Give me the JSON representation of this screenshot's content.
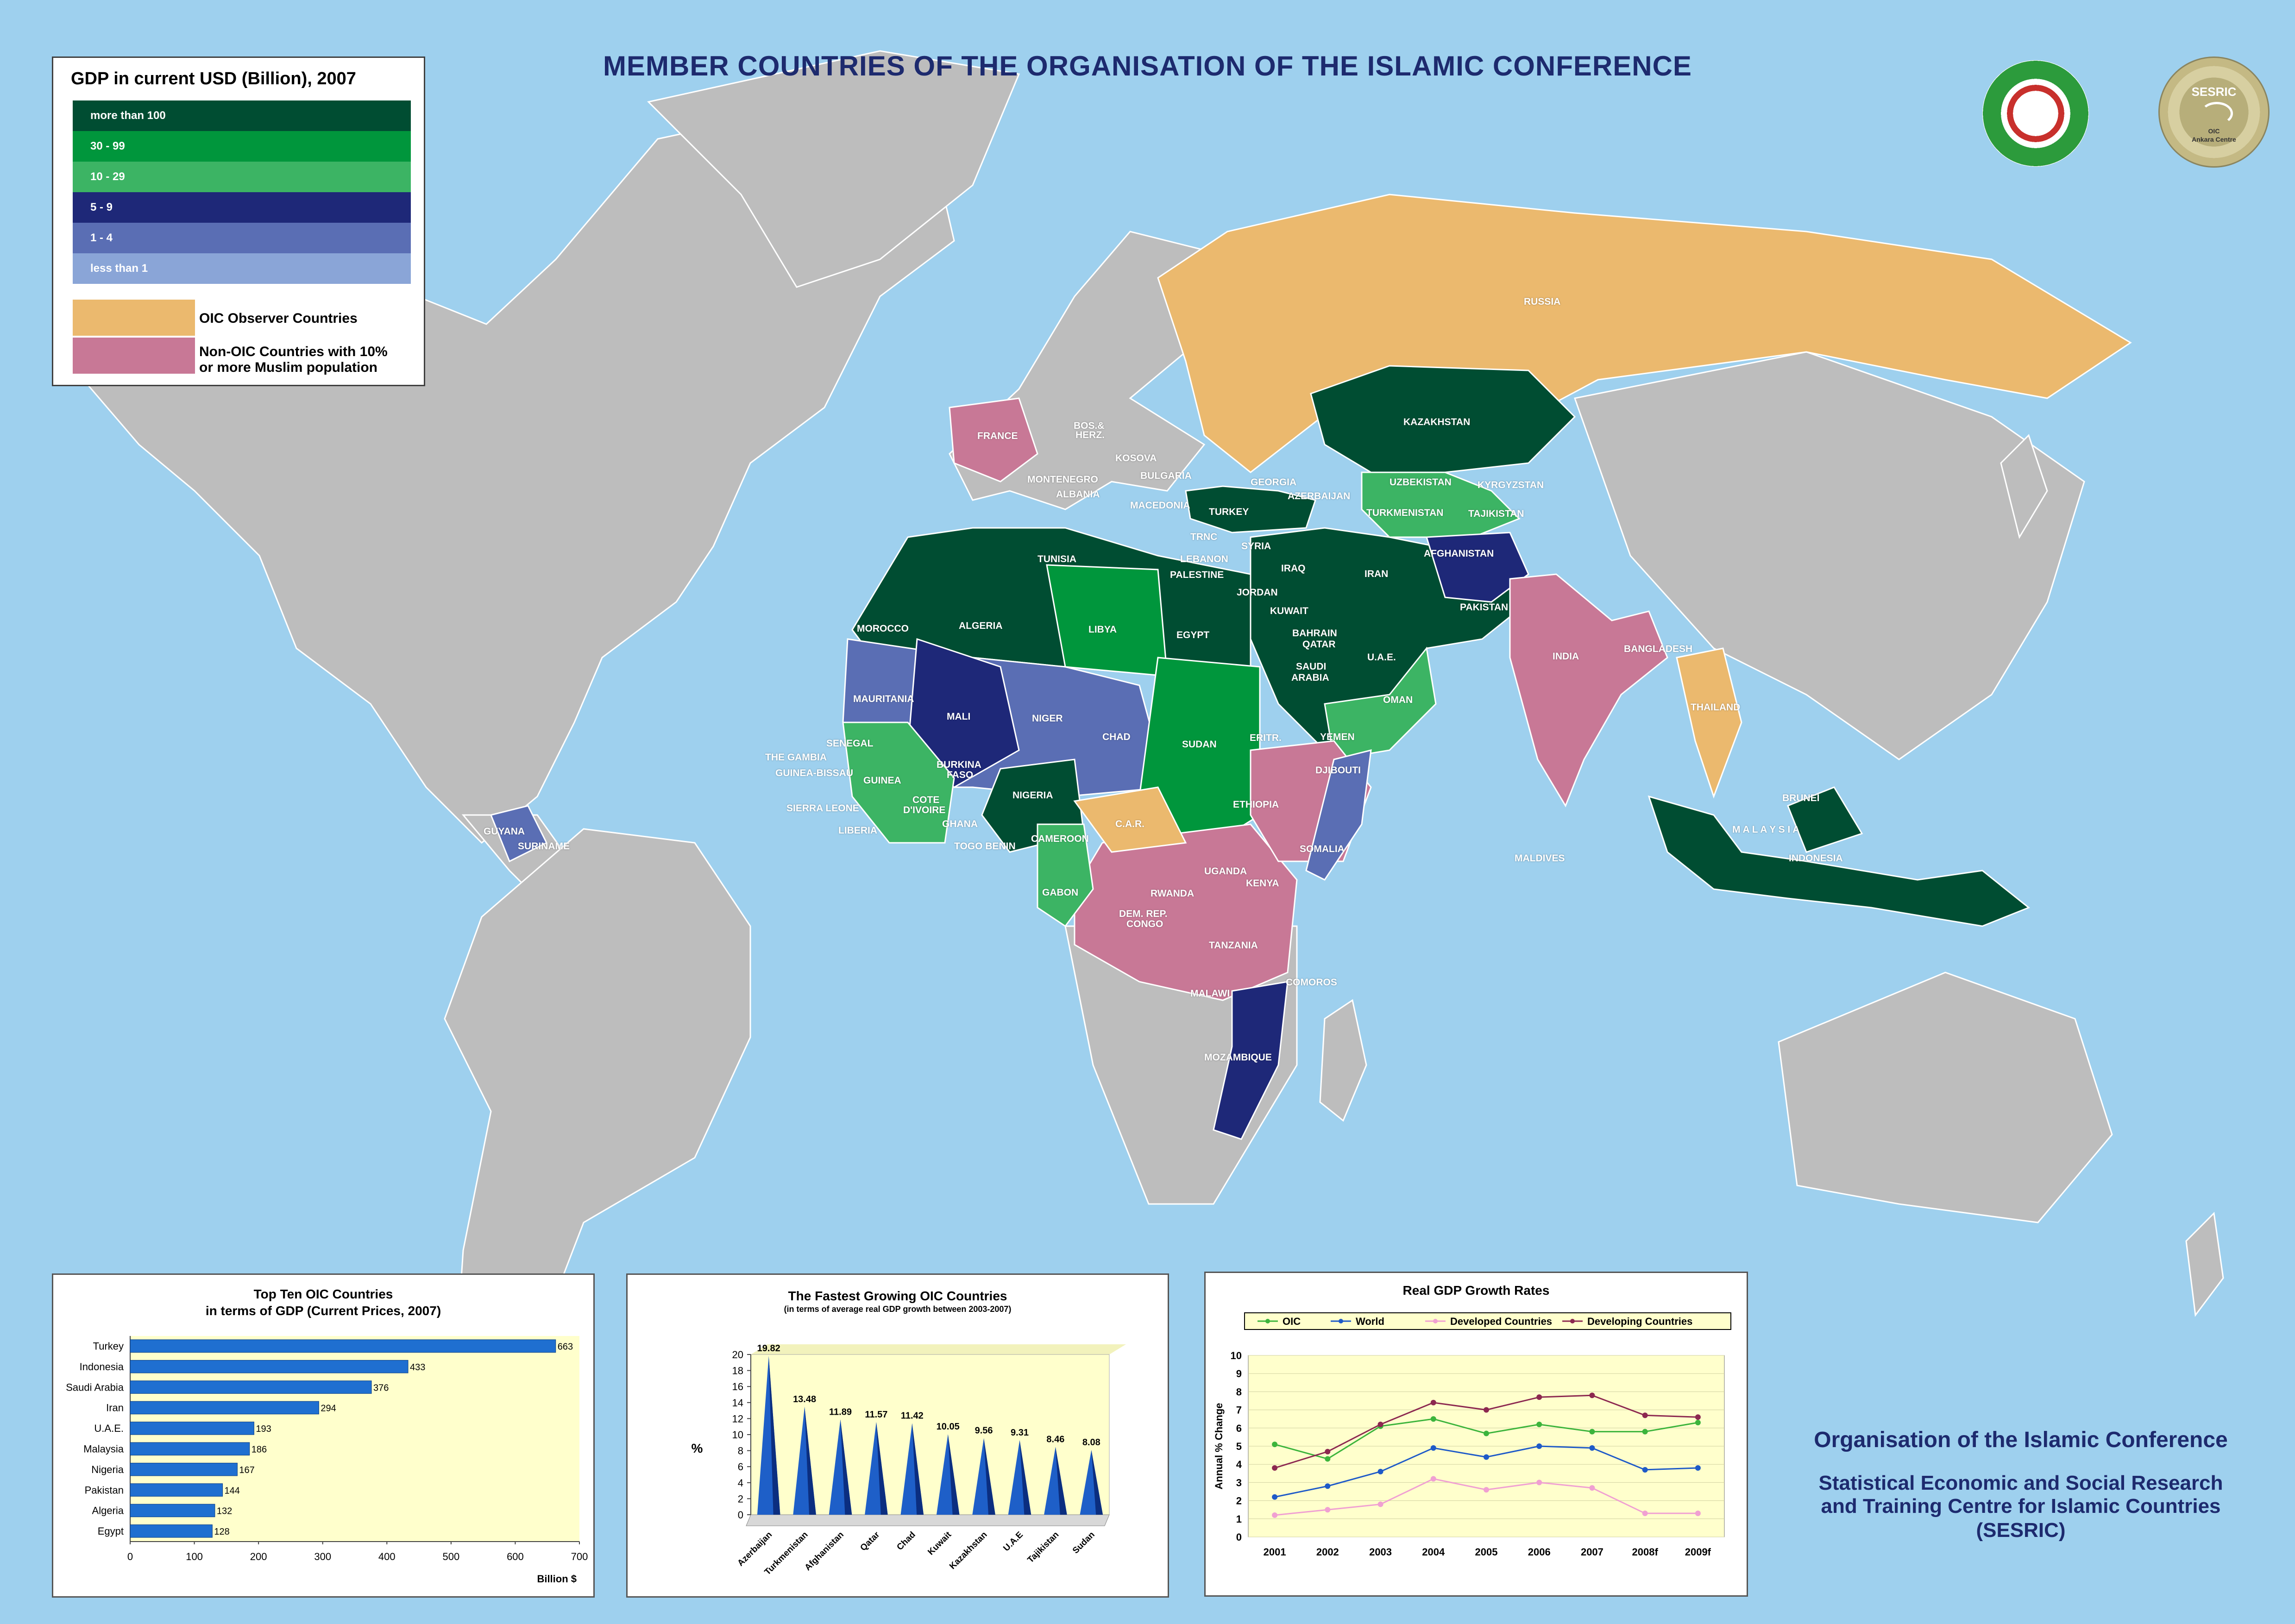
{
  "map": {
    "title": "MEMBER COUNTRIES OF THE ORGANISATION OF THE ISLAMIC CONFERENCE",
    "colors": {
      "ocean": "#9ed0ee",
      "land": "#bdbdbd",
      "gdp_gt100": "#004d32",
      "gdp_30_99": "#00963c",
      "gdp_10_29": "#3cb464",
      "gdp_5_9": "#1e2878",
      "gdp_1_4": "#5a6eb4",
      "gdp_lt1": "#8aa5d7",
      "observer": "#ebb96e",
      "non_oic": "#c87896"
    },
    "country_labels": [
      {
        "id": "russia",
        "text": "RUSSIA"
      },
      {
        "id": "kazakhstan",
        "text": "KAZAKHSTAN"
      },
      {
        "id": "uzbekistan",
        "text": "UZBEKISTAN"
      },
      {
        "id": "kyrgyzstan",
        "text": "KYRGYZSTAN"
      },
      {
        "id": "tajikistan",
        "text": "TAJIKISTAN"
      },
      {
        "id": "turkmenistan",
        "text": "TURKMENISTAN"
      },
      {
        "id": "georgia",
        "text": "GEORGIA"
      },
      {
        "id": "azerbaijan",
        "text": "AZERBAIJAN"
      },
      {
        "id": "turkey",
        "text": "TURKEY"
      },
      {
        "id": "france",
        "text": "FRANCE"
      },
      {
        "id": "bosherz",
        "text": "BOS.&"
      },
      {
        "id": "bosherz2",
        "text": "HERZ."
      },
      {
        "id": "kosova",
        "text": "KOSOVA"
      },
      {
        "id": "bulgaria",
        "text": "BULGARIA"
      },
      {
        "id": "montenegro",
        "text": "MONTENEGRO"
      },
      {
        "id": "albania",
        "text": "ALBANIA"
      },
      {
        "id": "macedonia",
        "text": "MACEDONIA"
      },
      {
        "id": "trnc",
        "text": "TRNC"
      },
      {
        "id": "syria",
        "text": "SYRIA"
      },
      {
        "id": "lebanon",
        "text": "LEBANON"
      },
      {
        "id": "palestine",
        "text": "PALESTINE"
      },
      {
        "id": "iraq",
        "text": "IRAQ"
      },
      {
        "id": "jordan",
        "text": "JORDAN"
      },
      {
        "id": "iran",
        "text": "IRAN"
      },
      {
        "id": "afghanistan",
        "text": "AFGHANISTAN"
      },
      {
        "id": "pakistan",
        "text": "PAKISTAN"
      },
      {
        "id": "kuwait",
        "text": "KUWAIT"
      },
      {
        "id": "bahrain",
        "text": "BAHRAIN"
      },
      {
        "id": "qatar",
        "text": "QATAR"
      },
      {
        "id": "saudi",
        "text": "SAUDI"
      },
      {
        "id": "arabia",
        "text": "ARABIA"
      },
      {
        "id": "uae",
        "text": "U.A.E."
      },
      {
        "id": "oman",
        "text": "OMAN"
      },
      {
        "id": "yemen",
        "text": "YEMEN"
      },
      {
        "id": "india",
        "text": "INDIA"
      },
      {
        "id": "bangladesh",
        "text": "BANGLADESH"
      },
      {
        "id": "thailand",
        "text": "THAILAND"
      },
      {
        "id": "brunei",
        "text": "BRUNEI"
      },
      {
        "id": "malaysia",
        "text": "M A L A Y S I A"
      },
      {
        "id": "indonesia",
        "text": "INDONESIA"
      },
      {
        "id": "maldives",
        "text": "MALDIVES"
      },
      {
        "id": "tunisia",
        "text": "TUNISIA"
      },
      {
        "id": "morocco",
        "text": "MOROCCO"
      },
      {
        "id": "algeria",
        "text": "ALGERIA"
      },
      {
        "id": "libya",
        "text": "LIBYA"
      },
      {
        "id": "egypt",
        "text": "EGYPT"
      },
      {
        "id": "mauritania",
        "text": "MAURITANIA"
      },
      {
        "id": "mali",
        "text": "MALI"
      },
      {
        "id": "niger",
        "text": "NIGER"
      },
      {
        "id": "chad",
        "text": "CHAD"
      },
      {
        "id": "sudan",
        "text": "SUDAN"
      },
      {
        "id": "eritrea",
        "text": "ERITR."
      },
      {
        "id": "djibouti",
        "text": "DJIBOUTI"
      },
      {
        "id": "ethiopia",
        "text": "ETHIOPIA"
      },
      {
        "id": "somalia",
        "text": "SOMALIA"
      },
      {
        "id": "senegal",
        "text": "SENEGAL"
      },
      {
        "id": "gambia",
        "text": "THE GAMBIA"
      },
      {
        "id": "guineabissau",
        "text": "GUINEA-BISSAU"
      },
      {
        "id": "guinea",
        "text": "GUINEA"
      },
      {
        "id": "sierraleone",
        "text": "SIERRA LEONE"
      },
      {
        "id": "liberia",
        "text": "LIBERIA"
      },
      {
        "id": "burkina",
        "text": "BURKINA"
      },
      {
        "id": "faso",
        "text": "FASO"
      },
      {
        "id": "cote",
        "text": "COTE"
      },
      {
        "id": "divoire",
        "text": "D'IVOIRE"
      },
      {
        "id": "ghana",
        "text": "GHANA"
      },
      {
        "id": "togobenin",
        "text": "TOGO BENIN"
      },
      {
        "id": "nigeria",
        "text": "NIGERIA"
      },
      {
        "id": "cameroon",
        "text": "CAMEROON"
      },
      {
        "id": "car",
        "text": "C.A.R."
      },
      {
        "id": "gabon",
        "text": "GABON"
      },
      {
        "id": "uganda",
        "text": "UGANDA"
      },
      {
        "id": "kenya",
        "text": "KENYA"
      },
      {
        "id": "rwanda",
        "text": "RWANDA"
      },
      {
        "id": "drc1",
        "text": "DEM. REP."
      },
      {
        "id": "drc2",
        "text": "CONGO"
      },
      {
        "id": "tanzania",
        "text": "TANZANIA"
      },
      {
        "id": "comoros",
        "text": "COMOROS"
      },
      {
        "id": "malawi",
        "text": "MALAWI"
      },
      {
        "id": "mozambique",
        "text": "MOZAMBIQUE"
      },
      {
        "id": "guyana",
        "text": "GUYANA"
      },
      {
        "id": "suriname",
        "text": "SURINAME"
      }
    ]
  },
  "legend": {
    "title": "GDP in current USD (Billion), 2007",
    "rows": [
      "more than 100",
      "30 - 99",
      "10 - 29",
      "5 - 9",
      "1 - 4",
      "less than 1"
    ],
    "observer_label": "OIC Observer Countries",
    "non_oic_label_1": "Non-OIC Countries with 10%",
    "non_oic_label_2": "or more Muslim population"
  },
  "footer": {
    "line1": "Organisation of the Islamic Conference",
    "line2": "Statistical Economic and Social Research",
    "line3": "and Training Centre for Islamic Countries",
    "line4": "(SESRIC)"
  },
  "emblems": {
    "sesric_text": "SESRIC",
    "sesric_sub": "OIC",
    "sesric_sub2": "Ankara Centre"
  },
  "chart_data": [
    {
      "type": "bar",
      "orientation": "horizontal",
      "title": "Top Ten OIC Countries",
      "subtitle": "in terms of GDP (Current Prices, 2007)",
      "categories": [
        "Turkey",
        "Indonesia",
        "Saudi Arabia",
        "Iran",
        "U.A.E.",
        "Malaysia",
        "Nigeria",
        "Pakistan",
        "Algeria",
        "Egypt"
      ],
      "values": [
        663,
        433,
        376,
        294,
        193,
        186,
        167,
        144,
        132,
        128
      ],
      "xlim": [
        0,
        700
      ],
      "xticks": [
        0,
        100,
        200,
        300,
        400,
        500,
        600,
        700
      ],
      "xlabel": "Billion $",
      "color": "#1f6fd0"
    },
    {
      "type": "bar",
      "style": "3d-cone",
      "title": "The Fastest Growing OIC Countries",
      "subtitle": "(in terms of average real GDP growth between 2003-2007)",
      "categories": [
        "Azerbaijan",
        "Turkmenistan",
        "Afghanistan",
        "Qatar",
        "Chad",
        "Kuwait",
        "Kazakhstan",
        "U.A.E",
        "Tajikistan",
        "Sudan"
      ],
      "values": [
        19.82,
        13.48,
        11.89,
        11.57,
        11.42,
        10.05,
        9.56,
        9.31,
        8.46,
        8.08
      ],
      "value_labels": [
        "19.82",
        "13.48",
        "11.89",
        "11.57",
        "11.42",
        "10.05",
        "9.56",
        "9.31",
        "8.46",
        "8.08"
      ],
      "ylim": [
        0,
        20
      ],
      "yticks": [
        0,
        2,
        4,
        6,
        8,
        10,
        12,
        14,
        16,
        18,
        20
      ],
      "ylabel": "%",
      "color": "#1e5fc8"
    },
    {
      "type": "line",
      "title": "Real GDP Growth Rates",
      "x": [
        "2001",
        "2002",
        "2003",
        "2004",
        "2005",
        "2006",
        "2007",
        "2008f",
        "2009f"
      ],
      "ylim": [
        0,
        10
      ],
      "yticks": [
        0,
        1,
        2,
        3,
        4,
        5,
        6,
        7,
        8,
        9,
        10
      ],
      "ylabel": "Annual % Change",
      "series": [
        {
          "name": "OIC",
          "color": "#3cb43c",
          "values": [
            5.1,
            4.3,
            6.1,
            6.5,
            5.7,
            6.2,
            5.8,
            5.8,
            6.3
          ]
        },
        {
          "name": "World",
          "color": "#1e5ac8",
          "values": [
            2.2,
            2.8,
            3.6,
            4.9,
            4.4,
            5.0,
            4.9,
            3.7,
            3.8
          ]
        },
        {
          "name": "Developed Countries",
          "color": "#f0a0d2",
          "values": [
            1.2,
            1.5,
            1.8,
            3.2,
            2.6,
            3.0,
            2.7,
            1.3,
            1.3
          ]
        },
        {
          "name": "Developing Countries",
          "color": "#8c2850",
          "values": [
            3.8,
            4.7,
            6.2,
            7.4,
            7.0,
            7.7,
            7.8,
            6.7,
            6.6
          ]
        }
      ]
    }
  ]
}
